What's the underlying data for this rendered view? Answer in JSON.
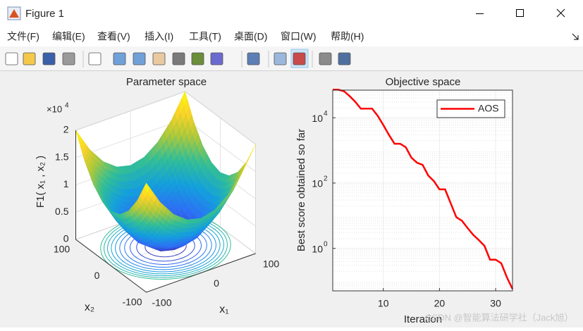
{
  "window": {
    "title": "Figure 1",
    "menu": [
      "文件(F)",
      "编辑(E)",
      "查看(V)",
      "插入(I)",
      "工具(T)",
      "桌面(D)",
      "窗口(W)",
      "帮助(H)"
    ]
  },
  "chart_data": [
    {
      "type": "surface",
      "title": "Parameter space",
      "xlabel": "x₁",
      "ylabel": "x₂",
      "zlabel": "F1( x₁ , x₂ )",
      "x": [
        -100,
        -75,
        -50,
        -25,
        0,
        25,
        50,
        75,
        100
      ],
      "y": [
        -100,
        -75,
        -50,
        -25,
        0,
        25,
        50,
        75,
        100
      ],
      "z": [
        [
          20000,
          15625,
          12500,
          10625,
          10000,
          10625,
          12500,
          15625,
          20000
        ],
        [
          15625,
          11250,
          8125,
          6250,
          5625,
          6250,
          8125,
          11250,
          15625
        ],
        [
          12500,
          8125,
          5000,
          3125,
          2500,
          3125,
          5000,
          8125,
          12500
        ],
        [
          10625,
          6250,
          3125,
          1250,
          625,
          1250,
          3125,
          6250,
          10625
        ],
        [
          10000,
          5625,
          2500,
          625,
          0,
          625,
          2500,
          5625,
          10000
        ],
        [
          10625,
          6250,
          3125,
          1250,
          625,
          1250,
          3125,
          6250,
          10625
        ],
        [
          12500,
          8125,
          5000,
          3125,
          2500,
          3125,
          5000,
          8125,
          12500
        ],
        [
          15625,
          11250,
          8125,
          6250,
          5625,
          6250,
          8125,
          11250,
          15625
        ],
        [
          20000,
          15625,
          12500,
          10625,
          10000,
          10625,
          12500,
          15625,
          20000
        ]
      ],
      "xlim": [
        -100,
        100
      ],
      "ylim": [
        -100,
        100
      ],
      "zlim": [
        0,
        20000
      ],
      "xticks": [
        -100,
        0,
        100
      ],
      "yticks": [
        -100,
        0,
        100
      ],
      "zticks": [
        0,
        {
          "value": 5000,
          "label": "0.5"
        },
        {
          "value": 10000,
          "label": "1"
        },
        {
          "value": 15000,
          "label": "1.5"
        },
        {
          "value": 20000,
          "label": "2"
        }
      ],
      "zexponent": {
        "base": "×10",
        "power": "4"
      },
      "contour_levels": [
        1000,
        2000,
        3000,
        4000,
        5000,
        6000,
        7000,
        8000,
        9000,
        10000
      ],
      "grid": true
    },
    {
      "type": "line",
      "title": "Objective space",
      "xlabel": "Iteration",
      "ylabel": "Best score obtained so far",
      "x": [
        1,
        2,
        3,
        4,
        5,
        6,
        7,
        8,
        9,
        10,
        11,
        12,
        13,
        14,
        15,
        16,
        17,
        18,
        19,
        20,
        21,
        22,
        23,
        24,
        25,
        26,
        27,
        28,
        29,
        30,
        31,
        32,
        33
      ],
      "series": [
        {
          "name": "AOS",
          "color": "#ff0000",
          "values": [
            72000,
            72000,
            65000,
            46000,
            31000,
            19000,
            19000,
            19000,
            11500,
            6000,
            3000,
            1600,
            1600,
            1250,
            600,
            420,
            360,
            170,
            115,
            64,
            64,
            24,
            9,
            7,
            4.2,
            2.6,
            1.8,
            1.2,
            0.45,
            0.45,
            0.35,
            0.13,
            0.057
          ]
        }
      ],
      "xlim": [
        1,
        33
      ],
      "ylim": [
        0.05,
        70000
      ],
      "xticks": [
        10,
        20,
        30
      ],
      "yticks": [
        {
          "value": 1,
          "label": "10",
          "exponent": "0"
        },
        {
          "value": 100,
          "label": "10",
          "exponent": "2"
        },
        {
          "value": 10000,
          "label": "10",
          "exponent": "4"
        }
      ],
      "log_y": true,
      "grid": true,
      "minor_grid": true,
      "legend": "upper right"
    }
  ],
  "watermark": "CSDN @智能算法研学社（Jack旭）"
}
